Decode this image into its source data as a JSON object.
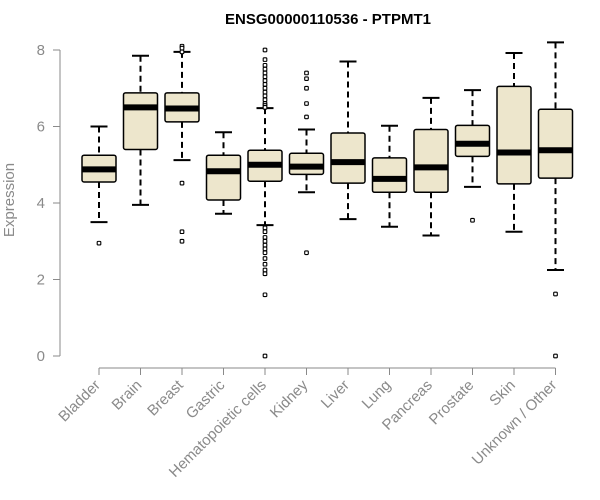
{
  "chart_data": {
    "type": "box",
    "title": "ENSG00000110536 - PTPMT1",
    "xlabel": "",
    "ylabel": "Expression",
    "ylim": [
      0,
      8.25
    ],
    "yticks": [
      0,
      2,
      4,
      6,
      8
    ],
    "colors": {
      "box_fill": "#ede6cc",
      "box_stroke": "#000000",
      "median": "#000000",
      "axis": "#8a8a8a"
    },
    "series": [
      {
        "name": "Bladder",
        "q1": 4.55,
        "median": 4.88,
        "q3": 5.25,
        "whisker_low": 3.5,
        "whisker_high": 6.0,
        "outliers": [
          2.95
        ]
      },
      {
        "name": "Brain",
        "q1": 5.4,
        "median": 6.5,
        "q3": 6.88,
        "whisker_low": 3.95,
        "whisker_high": 7.85,
        "outliers": []
      },
      {
        "name": "Breast",
        "q1": 6.12,
        "median": 6.47,
        "q3": 6.88,
        "whisker_low": 5.12,
        "whisker_high": 7.95,
        "outliers": [
          8.1,
          8.05,
          7.95,
          4.52,
          3.25,
          3.0
        ]
      },
      {
        "name": "Gastric",
        "q1": 4.08,
        "median": 4.83,
        "q3": 5.25,
        "whisker_low": 3.72,
        "whisker_high": 5.85,
        "outliers": []
      },
      {
        "name": "Hematopoietic cells",
        "q1": 4.57,
        "median": 5.0,
        "q3": 5.38,
        "whisker_low": 3.42,
        "whisker_high": 6.48,
        "outliers": [
          8.0,
          7.75,
          7.6,
          7.5,
          7.4,
          7.3,
          7.2,
          7.1,
          7.0,
          6.9,
          6.8,
          6.7,
          6.6,
          6.55,
          6.5,
          3.35,
          3.25,
          3.1,
          3.0,
          2.9,
          2.8,
          2.7,
          2.55,
          2.4,
          2.25,
          2.15,
          1.6,
          0.0
        ]
      },
      {
        "name": "Kidney",
        "q1": 4.75,
        "median": 4.95,
        "q3": 5.3,
        "whisker_low": 4.28,
        "whisker_high": 5.92,
        "outliers": [
          7.4,
          7.25,
          7.0,
          6.6,
          6.25,
          2.7
        ]
      },
      {
        "name": "Liver",
        "q1": 4.52,
        "median": 5.07,
        "q3": 5.83,
        "whisker_low": 3.58,
        "whisker_high": 7.7,
        "outliers": []
      },
      {
        "name": "Lung",
        "q1": 4.28,
        "median": 4.63,
        "q3": 5.18,
        "whisker_low": 3.38,
        "whisker_high": 6.02,
        "outliers": []
      },
      {
        "name": "Pancreas",
        "q1": 4.28,
        "median": 4.93,
        "q3": 5.92,
        "whisker_low": 3.15,
        "whisker_high": 6.75,
        "outliers": []
      },
      {
        "name": "Prostate",
        "q1": 5.22,
        "median": 5.55,
        "q3": 6.03,
        "whisker_low": 4.42,
        "whisker_high": 6.95,
        "outliers": [
          3.55
        ]
      },
      {
        "name": "Skin",
        "q1": 4.5,
        "median": 5.32,
        "q3": 7.05,
        "whisker_low": 3.25,
        "whisker_high": 7.92,
        "outliers": []
      },
      {
        "name": "Unknown / Other",
        "q1": 4.65,
        "median": 5.38,
        "q3": 6.45,
        "whisker_low": 2.25,
        "whisker_high": 8.2,
        "outliers": [
          1.62,
          0.0
        ]
      }
    ]
  }
}
